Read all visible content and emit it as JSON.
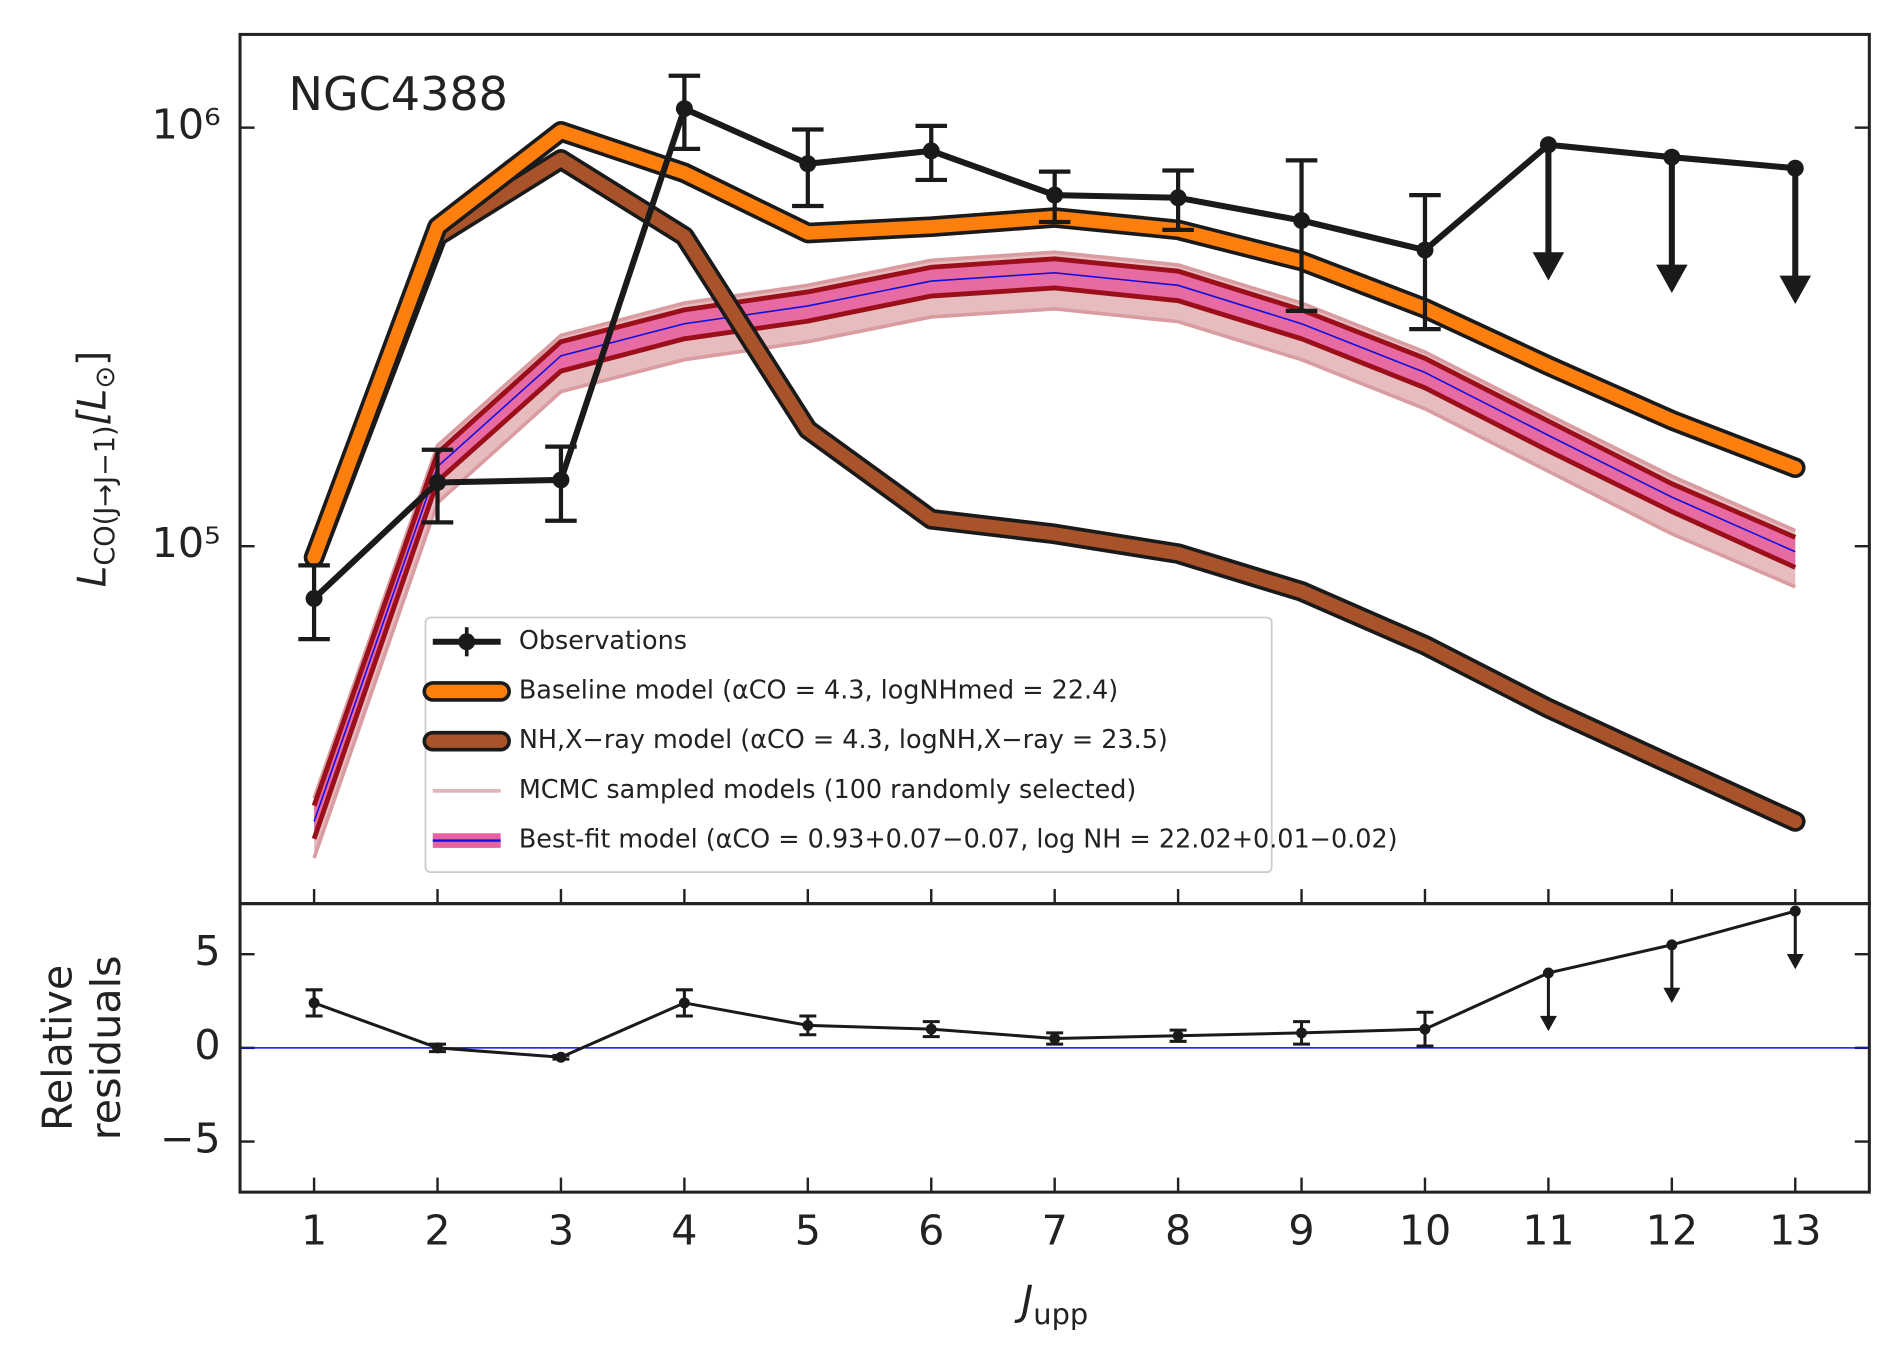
{
  "chart_data": [
    {
      "type": "line",
      "annotation": "NGC4388",
      "yscale": "log",
      "ylabel": [
        "L",
        "CO(J→J−1)",
        "[L",
        "⊙",
        "]"
      ],
      "ylabel_subscripts": true,
      "x": [
        1,
        2,
        3,
        4,
        5,
        6,
        7,
        8,
        9,
        10,
        11,
        12,
        13
      ],
      "xlim": [
        0.4,
        13.6
      ],
      "xticks": [
        1,
        2,
        3,
        4,
        5,
        6,
        7,
        8,
        9,
        10,
        11,
        12,
        13
      ],
      "xtick_labels": false,
      "ylim": [
        14000,
        1670000
      ],
      "yticks": [
        {
          "value": 100000,
          "label": "10⁵"
        },
        {
          "value": 1000000,
          "label": "10⁶"
        }
      ],
      "legend": "lower center",
      "series": [
        {
          "name": "MCMC sampled models (100 randomly selected)",
          "style": "band",
          "color": "#e3b5b8",
          "lower": [
            18000,
            127000,
            234000,
            279000,
            308000,
            353000,
            369000,
            344000,
            279000,
            213000,
            151000,
            107000,
            80000
          ],
          "upper": [
            25000,
            174000,
            319000,
            381000,
            420000,
            482000,
            504000,
            470000,
            381000,
            291000,
            206000,
            147000,
            109000
          ]
        },
        {
          "name": "Best-fit model (αCO = 0.93+0.07−0.07, log NH = 22.02+0.01−0.02)",
          "style": "line_band",
          "color": "#1010dd",
          "band_color": "#e8609e",
          "values": [
            22000,
            155000,
            285000,
            340000,
            375000,
            430000,
            450000,
            420000,
            340000,
            260000,
            184000,
            131000,
            97000
          ],
          "lower": [
            20000,
            143000,
            262000,
            313000,
            345000,
            396000,
            414000,
            386000,
            313000,
            239000,
            169000,
            121000,
            89000
          ],
          "upper": [
            24000,
            167000,
            308000,
            367000,
            405000,
            464000,
            486000,
            454000,
            367000,
            281000,
            199000,
            141000,
            105000
          ]
        },
        {
          "name": "NH,X−ray model (αCO = 4.3, logNH,X−ray = 23.5)",
          "style": "outlined",
          "color": "#a9532a",
          "values": [
            94000,
            550000,
            840000,
            550000,
            190000,
            116000,
            107000,
            96000,
            78000,
            58000,
            41000,
            30000,
            22000
          ]
        },
        {
          "name": "Baseline model (αCO = 4.3, logNHmed = 22.4)",
          "style": "outlined",
          "color": "#ff7f0e",
          "values": [
            94000,
            580000,
            980000,
            780000,
            560000,
            580000,
            610000,
            570000,
            480000,
            370000,
            270000,
            200000,
            154000
          ]
        },
        {
          "name": "Observations",
          "style": "errorbar",
          "color": "#1a1a1a",
          "values": [
            75000,
            142000,
            144000,
            1110000,
            820000,
            880000,
            690000,
            680000,
            600000,
            510000,
            910000,
            850000,
            800000
          ],
          "errors": [
            15000,
            28000,
            29000,
            220000,
            170000,
            130000,
            95000,
            110000,
            235000,
            180000,
            null,
            null,
            null
          ],
          "upper_limits": [
            false,
            false,
            false,
            false,
            false,
            false,
            false,
            false,
            false,
            false,
            true,
            true,
            true
          ]
        }
      ]
    },
    {
      "type": "line",
      "ylabel": [
        "Relative",
        "residuals"
      ],
      "ylabel_subscripts": false,
      "xlabel": [
        "J",
        "upp"
      ],
      "xlabel_subscripts": true,
      "x": [
        1,
        2,
        3,
        4,
        5,
        6,
        7,
        8,
        9,
        10,
        11,
        12,
        13
      ],
      "xlim": [
        0.4,
        13.6
      ],
      "xticks": [
        1,
        2,
        3,
        4,
        5,
        6,
        7,
        8,
        9,
        10,
        11,
        12,
        13
      ],
      "ylim": [
        -7.7,
        7.7
      ],
      "yticks": [
        {
          "value": -5,
          "label": "−5"
        },
        0,
        5
      ],
      "hline": 0,
      "hline_color": "#1010dd",
      "series": [
        {
          "style": "errorbar",
          "color": "#1a1a1a",
          "values": [
            2.4,
            0,
            -0.5,
            2.4,
            1.2,
            1.0,
            0.5,
            0.65,
            0.8,
            1.0,
            4.0,
            5.5,
            7.3
          ],
          "errors": [
            0.7,
            0.2,
            0.1,
            0.7,
            0.5,
            0.4,
            0.3,
            0.3,
            0.6,
            0.9,
            null,
            null,
            null
          ],
          "upper_limits": [
            false,
            false,
            false,
            false,
            false,
            false,
            false,
            false,
            false,
            false,
            true,
            true,
            true
          ]
        }
      ]
    }
  ]
}
